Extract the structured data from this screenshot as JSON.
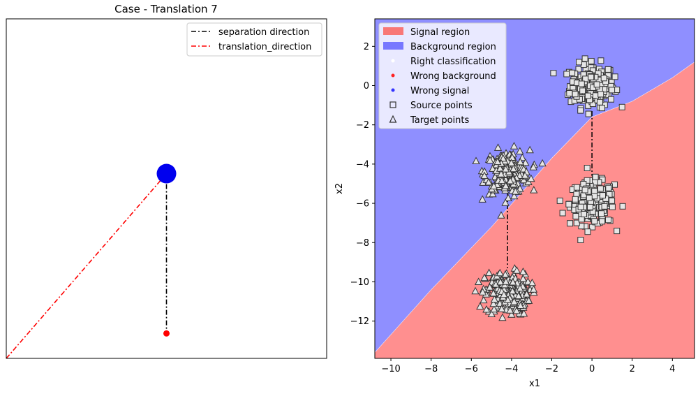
{
  "chart_data": [
    {
      "type": "line",
      "title": "Case - Translation 7",
      "xlabel": "",
      "ylabel": "",
      "ticks_visible": false,
      "xlim": [
        -7.7,
        5.5
      ],
      "ylim": [
        -12.6,
        1.0
      ],
      "grid": false,
      "legend": {
        "position": "top-right",
        "entries": [
          {
            "label": "separation direction",
            "color": "#000000",
            "style": "dash-dot"
          },
          {
            "label": "translation_direction",
            "color": "#ff0000",
            "style": "dash-dot"
          }
        ]
      },
      "series": [
        {
          "key": "separation",
          "color": "#000000",
          "points": [
            [
              -1.1,
              -5.2
            ],
            [
              -1.1,
              -11.6
            ]
          ]
        },
        {
          "key": "translation",
          "color": "#ff0000",
          "points": [
            [
              -7.7,
              -12.6
            ],
            [
              -1.1,
              -5.2
            ]
          ]
        }
      ],
      "markers": [
        {
          "key": "origin",
          "x": -1.1,
          "y": -5.2,
          "color": "#0000ee",
          "size": "large"
        },
        {
          "key": "end",
          "x": -1.1,
          "y": -11.6,
          "color": "#ff0000",
          "size": "small"
        }
      ]
    },
    {
      "type": "scatter",
      "title": "",
      "xlabel": "x1",
      "ylabel": "x2",
      "xlim": [
        -10.8,
        5.1
      ],
      "ylim": [
        -13.9,
        3.4
      ],
      "xticks": [
        -10,
        -8,
        -6,
        -4,
        -2,
        0,
        2,
        4
      ],
      "yticks": [
        -12,
        -10,
        -8,
        -6,
        -4,
        -2,
        0,
        2
      ],
      "grid": false,
      "regions": {
        "signal_color": "#ff8f8f",
        "background_color": "#8f8fff",
        "boundary": [
          [
            -10.8,
            -13.6
          ],
          [
            -8,
            -10.4
          ],
          [
            -5,
            -7.2
          ],
          [
            -2,
            -3.7
          ],
          [
            0,
            -1.6
          ],
          [
            2,
            -0.8
          ],
          [
            4,
            0.4
          ],
          [
            5.1,
            1.2
          ]
        ]
      },
      "legend": {
        "position": "top-left",
        "entries": [
          {
            "label": "Signal region",
            "kind": "patch",
            "color": "#f87777"
          },
          {
            "label": "Background region",
            "kind": "patch",
            "color": "#7777ff"
          },
          {
            "label": "Right classification",
            "kind": "dot",
            "color": "#ffffff"
          },
          {
            "label": "Wrong background",
            "kind": "dot",
            "color": "#ff2222"
          },
          {
            "label": "Wrong signal",
            "kind": "dot",
            "color": "#3333ff"
          },
          {
            "label": "Source points",
            "kind": "square",
            "color": "#333333"
          },
          {
            "label": "Target points",
            "kind": "triangle",
            "color": "#333333"
          }
        ]
      },
      "clusters": [
        {
          "name": "source-top",
          "marker": "square",
          "center": [
            0,
            0
          ],
          "spread": 0.55
        },
        {
          "name": "source-bottom",
          "marker": "square",
          "center": [
            0,
            -6
          ],
          "spread": 0.55
        },
        {
          "name": "target-top",
          "marker": "triangle",
          "center": [
            -4.2,
            -4.4
          ],
          "spread": 0.55
        },
        {
          "name": "target-bottom",
          "marker": "triangle",
          "center": [
            -4.2,
            -10.6
          ],
          "spread": 0.55
        }
      ],
      "direction_lines": [
        {
          "points": [
            [
              0,
              -1.3
            ],
            [
              0,
              -4.6
            ]
          ],
          "color": "#000000"
        },
        {
          "points": [
            [
              -4.2,
              -5.5
            ],
            [
              -4.2,
              -9.3
            ]
          ],
          "color": "#000000"
        }
      ]
    }
  ]
}
